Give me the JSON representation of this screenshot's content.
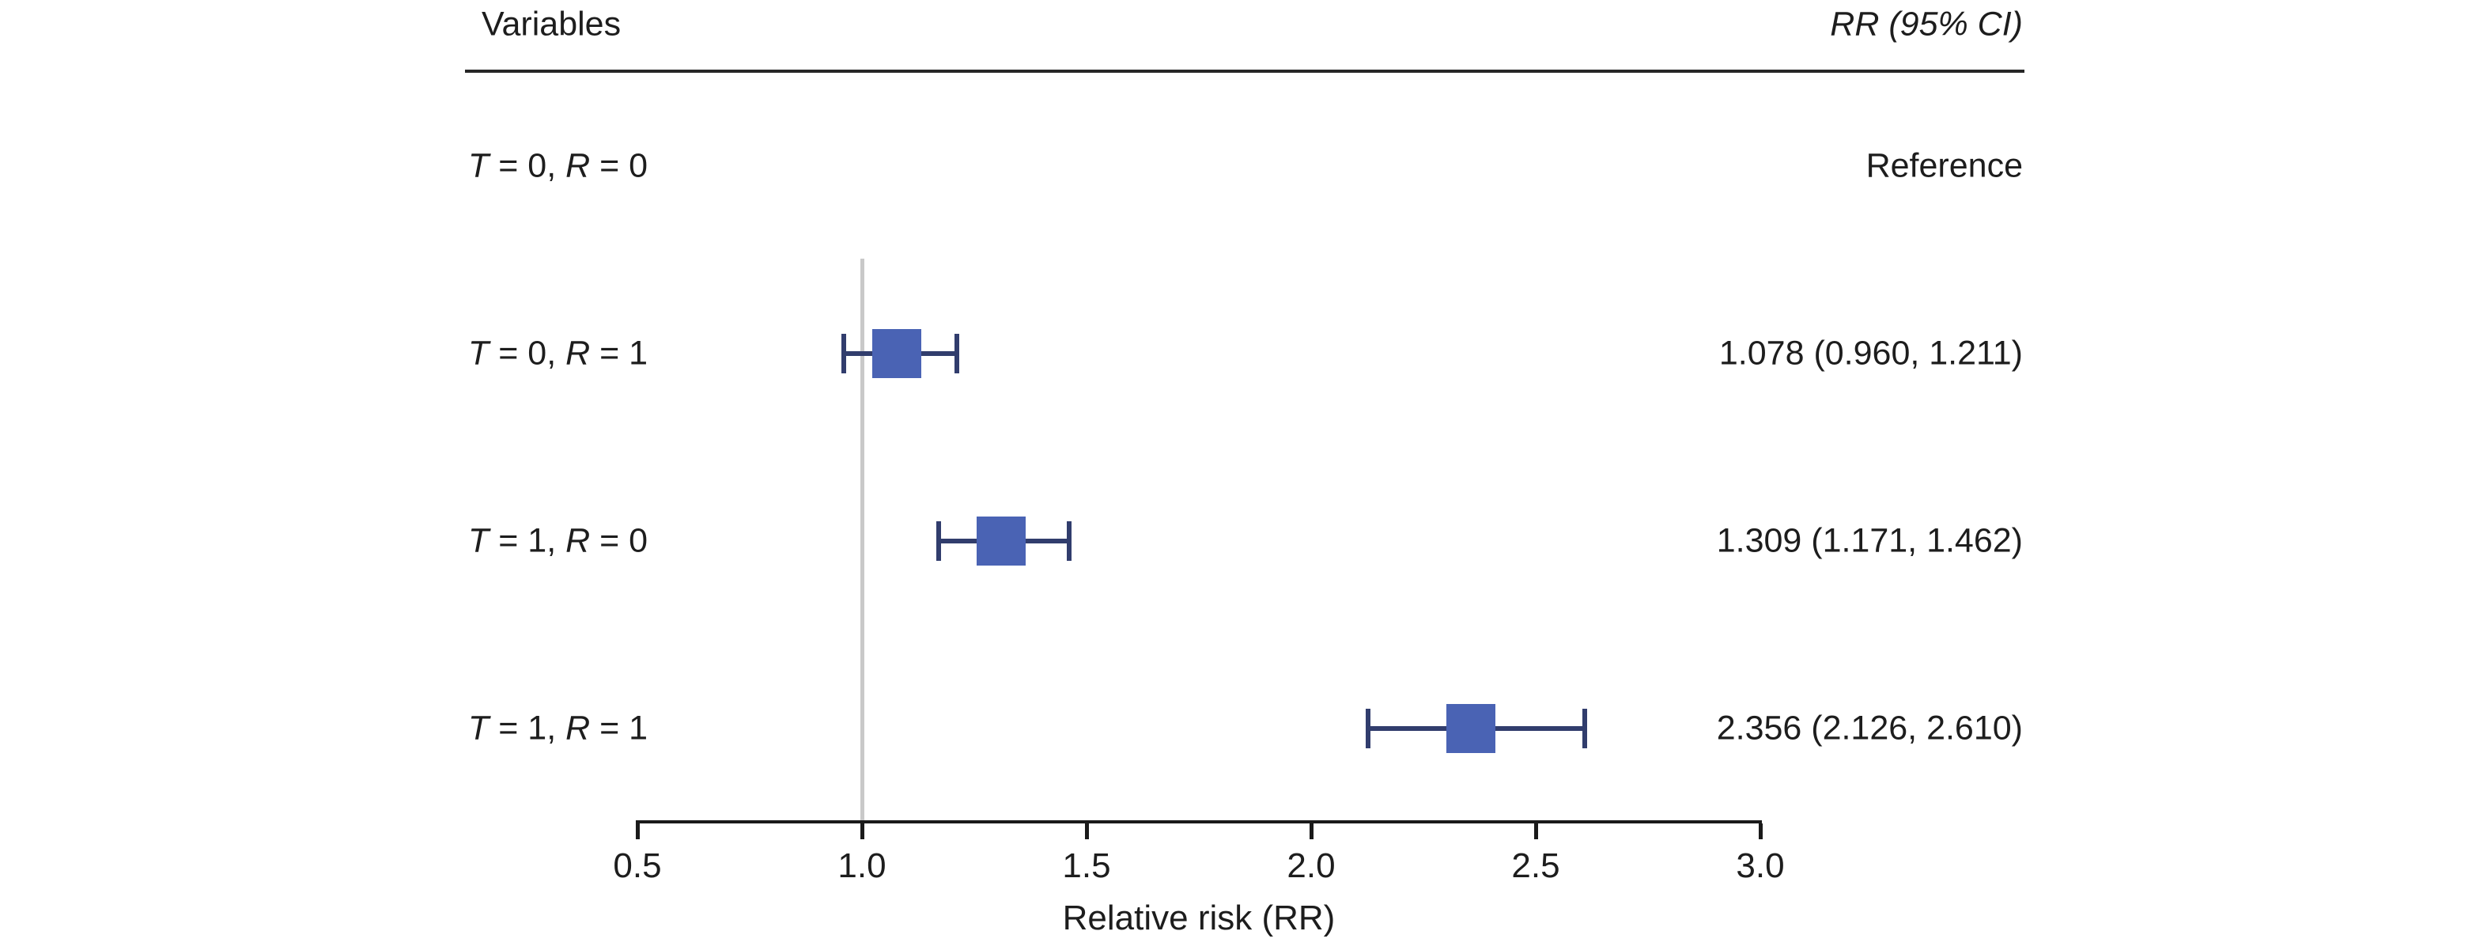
{
  "table": {
    "header_left": "Variables",
    "header_right": "RR (95% CI)"
  },
  "chart_data": {
    "type": "forest",
    "title": "",
    "xlabel": "Relative risk (RR)",
    "ylabel": "",
    "xlim": [
      0.5,
      3.0
    ],
    "xtick_labels": [
      "0.5",
      "1.0",
      "1.5",
      "2.0",
      "2.5",
      "3.0"
    ],
    "xtick_values": [
      0.5,
      1.0,
      1.5,
      2.0,
      2.5,
      3.0
    ],
    "reference_line_x": 1.0,
    "grid": false,
    "legend": false,
    "series": [
      {
        "label": "T = 0, R = 0",
        "label_parts": [
          "T",
          " = 0, ",
          "R",
          " = 0"
        ],
        "rr": null,
        "ci_low": null,
        "ci_high": null,
        "display": "Reference"
      },
      {
        "label": "T = 0, R = 1",
        "label_parts": [
          "T",
          " = 0, ",
          "R",
          " = 1"
        ],
        "rr": 1.078,
        "ci_low": 0.96,
        "ci_high": 1.211,
        "display": "1.078 (0.960, 1.211)"
      },
      {
        "label": "T = 1, R = 0",
        "label_parts": [
          "T",
          " = 1, ",
          "R",
          " = 0"
        ],
        "rr": 1.309,
        "ci_low": 1.171,
        "ci_high": 1.462,
        "display": "1.309 (1.171, 1.462)"
      },
      {
        "label": "T = 1, R = 1",
        "label_parts": [
          "T",
          " = 1, ",
          "R",
          " = 1"
        ],
        "rr": 2.356,
        "ci_low": 2.126,
        "ci_high": 2.61,
        "display": "2.356 (2.126, 2.610)"
      }
    ],
    "colors": {
      "marker": "#4a63b4",
      "whisker": "#313d6d",
      "reference_line": "#c9c9c9",
      "axis": "#1a1a1a",
      "rule": "#262626",
      "text": "#1d1d1d"
    }
  }
}
